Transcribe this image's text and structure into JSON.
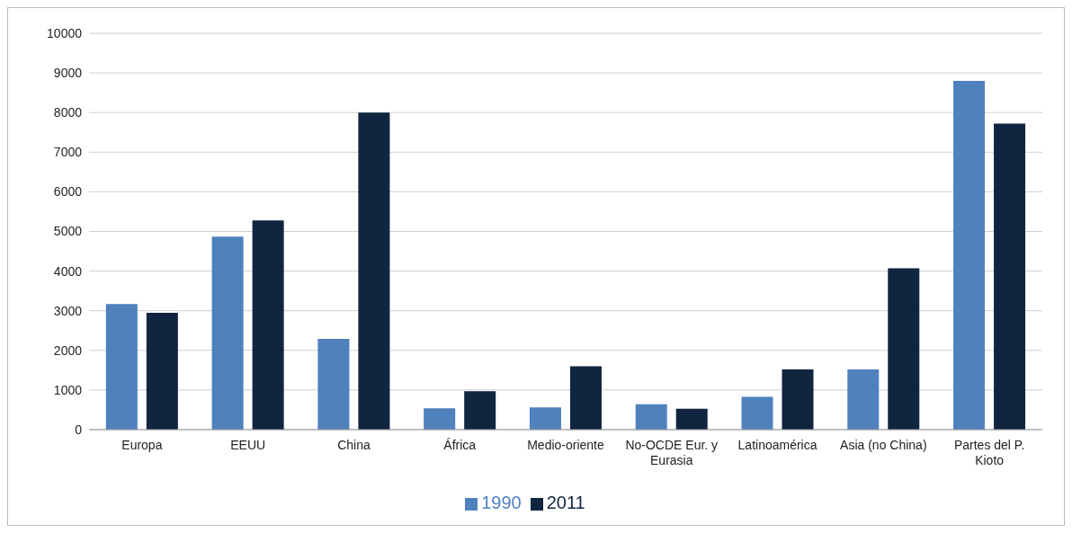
{
  "chart_data": {
    "type": "bar",
    "categories": [
      "Europa",
      "EEUU",
      "China",
      "África",
      "Medio-oriente",
      "No-OCDE Eur. y Eurasia",
      "Latinoamérica",
      "Asia (no China)",
      "Partes del P. Kioto"
    ],
    "series": [
      {
        "name": "1990",
        "color": "#4f81bd",
        "values": [
          3170,
          4870,
          2290,
          540,
          560,
          640,
          830,
          1520,
          8800
        ]
      },
      {
        "name": "2011",
        "color": "#10253f",
        "values": [
          2950,
          5280,
          8000,
          970,
          1600,
          530,
          1520,
          4070,
          7720
        ]
      }
    ],
    "ylim": [
      0,
      10000
    ],
    "yticks": [
      0,
      1000,
      2000,
      3000,
      4000,
      5000,
      6000,
      7000,
      8000,
      9000,
      10000
    ],
    "grid": "y",
    "legend": "bottom"
  }
}
